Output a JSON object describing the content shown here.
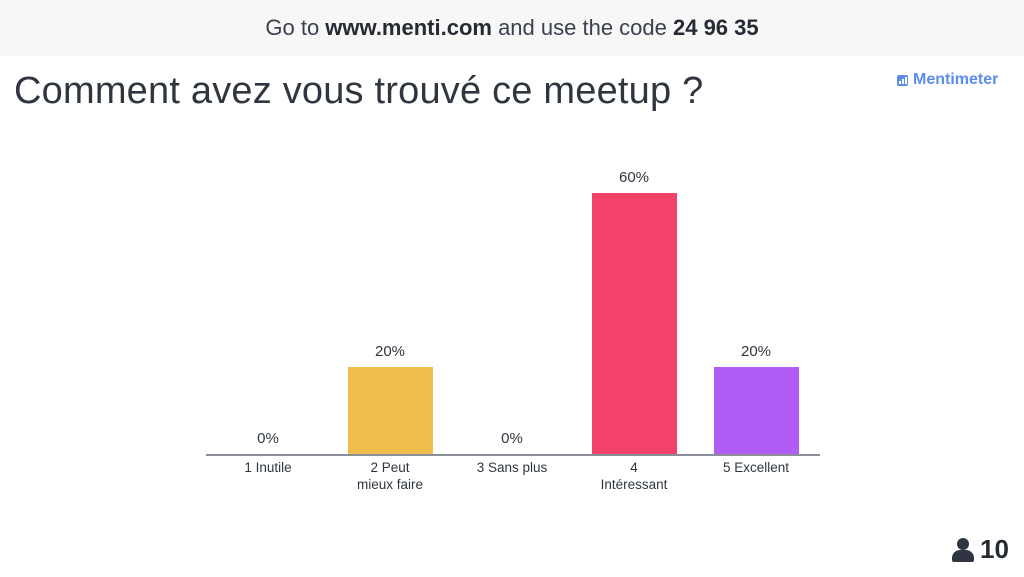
{
  "topbar": {
    "prefix": "Go to ",
    "url": "www.menti.com",
    "middle": " and use the code ",
    "code": "24 96 35"
  },
  "question": "Comment avez vous trouvé ce meetup ?",
  "brand": {
    "name": "Mentimeter",
    "color": "#5b8def"
  },
  "participants": {
    "count": "10",
    "icon": "person-icon"
  },
  "chart_data": {
    "type": "bar",
    "title": "Comment avez vous trouvé ce meetup ?",
    "categories": [
      "1 Inutile",
      "2 Peut mieux faire",
      "3 Sans plus",
      "4 Intéressant",
      "5 Excellent"
    ],
    "values": [
      0,
      20,
      0,
      60,
      20
    ],
    "value_labels": [
      "0%",
      "20%",
      "0%",
      "60%",
      "20%"
    ],
    "colors": [
      "#5b8def",
      "#f0be4c",
      "#7ad1c4",
      "#f2426a",
      "#b15cf5"
    ],
    "xlabel": "",
    "ylabel": "",
    "unit": "%",
    "grid": false,
    "legend": "none"
  },
  "bars": [
    {
      "label_line1": "1 Inutile",
      "label_line2": "",
      "value_label": "0%",
      "color": "#5b8def"
    },
    {
      "label_line1": "2 Peut",
      "label_line2": "mieux faire",
      "value_label": "20%",
      "color": "#f0be4c"
    },
    {
      "label_line1": "3 Sans plus",
      "label_line2": "",
      "value_label": "0%",
      "color": "#7ad1c4"
    },
    {
      "label_line1": "4",
      "label_line2": "Intéressant",
      "value_label": "60%",
      "color": "#f2426a"
    },
    {
      "label_line1": "5 Excellent",
      "label_line2": "",
      "value_label": "20%",
      "color": "#b15cf5"
    }
  ]
}
